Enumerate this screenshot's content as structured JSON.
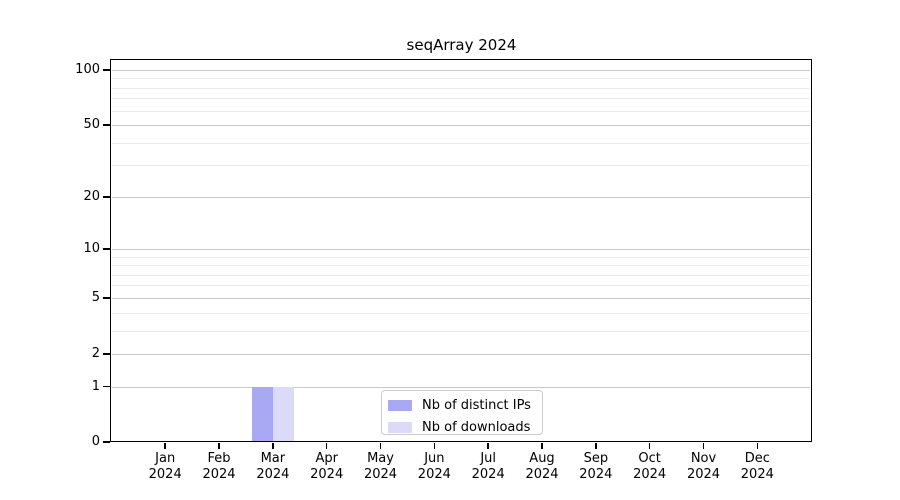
{
  "chart_data": {
    "type": "bar",
    "title": "seqArray 2024",
    "categories": [
      "Jan",
      "Feb",
      "Mar",
      "Apr",
      "May",
      "Jun",
      "Jul",
      "Aug",
      "Sep",
      "Oct",
      "Nov",
      "Dec"
    ],
    "year_label": "2024",
    "series": [
      {
        "name": "Nb of distinct IPs",
        "color": "#a9a9f3",
        "values": [
          0,
          0,
          1,
          0,
          0,
          0,
          0,
          0,
          0,
          0,
          0,
          0
        ]
      },
      {
        "name": "Nb of downloads",
        "color": "#dbdbf9",
        "values": [
          0,
          0,
          1,
          0,
          0,
          0,
          0,
          0,
          0,
          0,
          0,
          0
        ]
      }
    ],
    "xlabel": "",
    "ylabel": "",
    "y_axis": {
      "scale": "log1p",
      "major_ticks": [
        0,
        1,
        2,
        5,
        10,
        20,
        50,
        100
      ],
      "minor_gridlines": [
        3,
        4,
        6,
        7,
        8,
        9,
        30,
        40,
        60,
        70,
        80,
        90
      ],
      "ylim": [
        0,
        113
      ]
    },
    "grid": "horizontal",
    "legend_position": "bottom-center"
  }
}
